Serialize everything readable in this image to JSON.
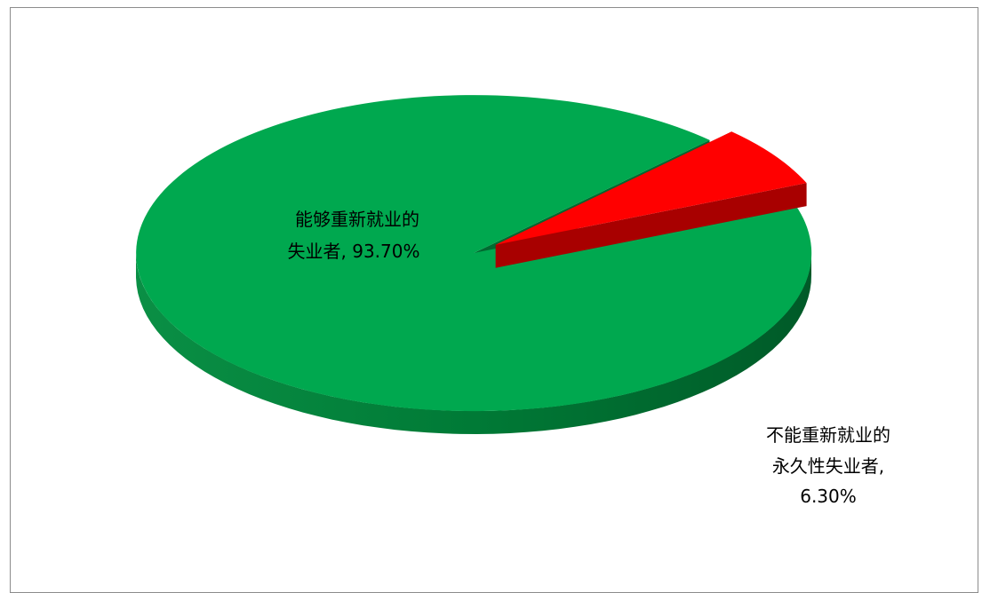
{
  "chart_data": {
    "type": "pie",
    "style": "3d-exploded",
    "slices": [
      {
        "label_line1": "能够重新就业的",
        "label_line2": "失业者, 93.70%",
        "label_line3": "",
        "value": 93.7,
        "color": "#00a84f",
        "side_color": "#00803a"
      },
      {
        "label_line1": "不能重新就业的",
        "label_line2": "永久性失业者,",
        "label_line3": "6.30%",
        "value": 6.3,
        "color": "#ff0000",
        "side_color": "#a80000"
      }
    ]
  }
}
